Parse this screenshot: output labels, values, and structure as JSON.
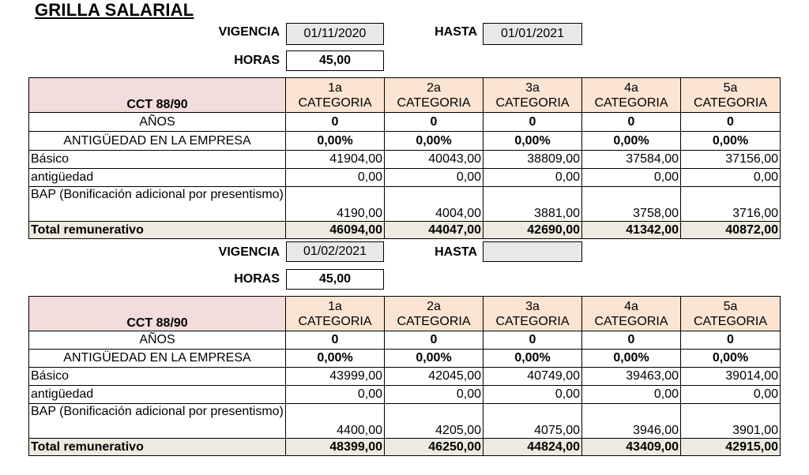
{
  "title": "GRILLA SALARIAL",
  "sections": [
    {
      "vigencia_label": "VIGENCIA",
      "vigencia_value": "01/11/2020",
      "hasta_label": "HASTA",
      "hasta_value": "01/01/2021",
      "horas_label": "HORAS",
      "horas_value": "45,00",
      "table": {
        "header_label": "CCT 88/90",
        "categories": [
          {
            "num": "1a",
            "label": "CATEGORIA"
          },
          {
            "num": "2a",
            "label": "CATEGORIA"
          },
          {
            "num": "3a",
            "label": "CATEGORIA"
          },
          {
            "num": "4a",
            "label": "CATEGORIA"
          },
          {
            "num": "5a",
            "label": "CATEGORIA"
          }
        ],
        "rows": [
          {
            "label": "AÑOS",
            "values": [
              "0",
              "0",
              "0",
              "0",
              "0"
            ]
          },
          {
            "label": "ANTIGÜEDAD EN LA EMPRESA",
            "values": [
              "0,00%",
              "0,00%",
              "0,00%",
              "0,00%",
              "0,00%"
            ]
          },
          {
            "label": "Básico",
            "values": [
              "41904,00",
              "40043,00",
              "38809,00",
              "37584,00",
              "37156,00"
            ]
          },
          {
            "label": "antigüedad",
            "values": [
              "0,00",
              "0,00",
              "0,00",
              "0,00",
              "0,00"
            ]
          },
          {
            "label": "BAP (Bonificación adicional por presentismo)",
            "values": [
              "4190,00",
              "4004,00",
              "3881,00",
              "3758,00",
              "3716,00"
            ]
          },
          {
            "label": "Total remunerativo",
            "values": [
              "46094,00",
              "44047,00",
              "42690,00",
              "41342,00",
              "40872,00"
            ]
          }
        ]
      }
    },
    {
      "vigencia_label": "VIGENCIA",
      "vigencia_value": "01/02/2021",
      "hasta_label": "HASTA",
      "hasta_value": "",
      "horas_label": "HORAS",
      "horas_value": "45,00",
      "table": {
        "header_label": "CCT 88/90",
        "categories": [
          {
            "num": "1a",
            "label": "CATEGORIA"
          },
          {
            "num": "2a",
            "label": "CATEGORIA"
          },
          {
            "num": "3a",
            "label": "CATEGORIA"
          },
          {
            "num": "4a",
            "label": "CATEGORIA"
          },
          {
            "num": "5a",
            "label": "CATEGORIA"
          }
        ],
        "rows": [
          {
            "label": "AÑOS",
            "values": [
              "0",
              "0",
              "0",
              "0",
              "0"
            ]
          },
          {
            "label": "ANTIGÜEDAD EN LA EMPRESA",
            "values": [
              "0,00%",
              "0,00%",
              "0,00%",
              "0,00%",
              "0,00%"
            ]
          },
          {
            "label": "Básico",
            "values": [
              "43999,00",
              "42045,00",
              "40749,00",
              "39463,00",
              "39014,00"
            ]
          },
          {
            "label": "antigüedad",
            "values": [
              "0,00",
              "0,00",
              "0,00",
              "0,00",
              "0,00"
            ]
          },
          {
            "label": "BAP (Bonificación adicional por presentismo)",
            "values": [
              "4400,00",
              "4205,00",
              "4075,00",
              "3946,00",
              "3901,00"
            ]
          },
          {
            "label": "Total remunerativo",
            "values": [
              "48399,00",
              "46250,00",
              "44824,00",
              "43409,00",
              "42915,00"
            ]
          }
        ]
      }
    }
  ],
  "colors": {
    "header_cct_bg": "#f3dcdc",
    "header_category_bg": "#fbe4d2",
    "total_row_bg": "#edeadf",
    "date_box_bg": "#e8e8e8"
  }
}
